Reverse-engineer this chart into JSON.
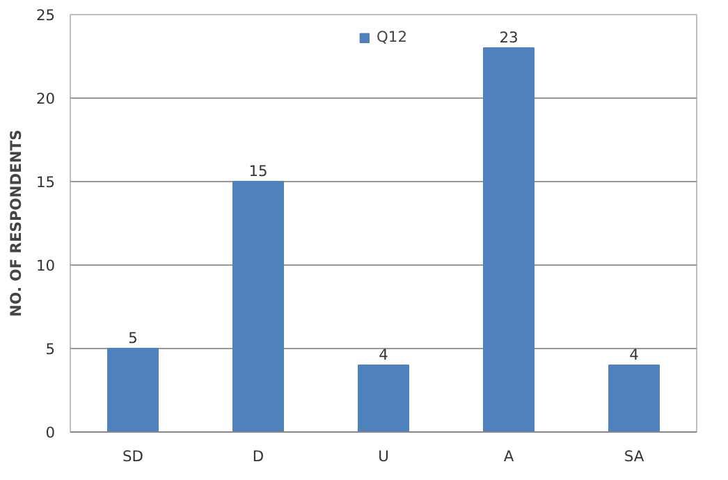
{
  "chart_data": {
    "type": "bar",
    "ylabel": "NO. OF RESPONDENTS",
    "categories": [
      "SD",
      "D",
      "U",
      "A",
      "SA"
    ],
    "series": [
      {
        "name": "Q12",
        "color": "#4f81bd",
        "values": [
          5,
          15,
          4,
          23,
          4
        ]
      }
    ],
    "ylim": [
      0,
      25
    ],
    "yticks": [
      0,
      5,
      10,
      15,
      20,
      25
    ],
    "grid": "y",
    "legend": "top",
    "data_labels": true
  }
}
